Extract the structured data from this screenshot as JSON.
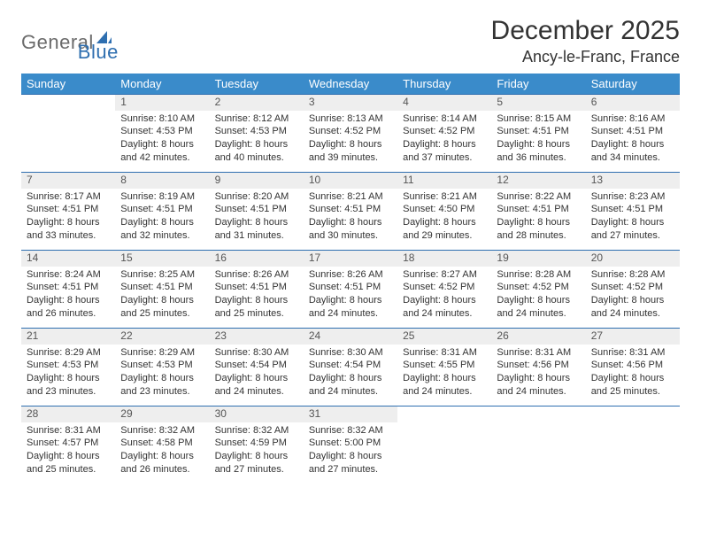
{
  "brand": {
    "general": "General",
    "blue": "Blue"
  },
  "title": "December 2025",
  "location": "Ancy-le-Franc, France",
  "colors": {
    "header_bg": "#3a8bca",
    "header_text": "#ffffff",
    "daynum_bg": "#eeeeee",
    "border": "#2f6fb0",
    "logo_gray": "#6b6b6b",
    "logo_blue": "#2f6fb0",
    "page_bg": "#ffffff",
    "text": "#333333"
  },
  "weekdays": [
    "Sunday",
    "Monday",
    "Tuesday",
    "Wednesday",
    "Thursday",
    "Friday",
    "Saturday"
  ],
  "weeks": [
    [
      null,
      {
        "n": "1",
        "sr": "Sunrise: 8:10 AM",
        "ss": "Sunset: 4:53 PM",
        "d1": "Daylight: 8 hours",
        "d2": "and 42 minutes."
      },
      {
        "n": "2",
        "sr": "Sunrise: 8:12 AM",
        "ss": "Sunset: 4:53 PM",
        "d1": "Daylight: 8 hours",
        "d2": "and 40 minutes."
      },
      {
        "n": "3",
        "sr": "Sunrise: 8:13 AM",
        "ss": "Sunset: 4:52 PM",
        "d1": "Daylight: 8 hours",
        "d2": "and 39 minutes."
      },
      {
        "n": "4",
        "sr": "Sunrise: 8:14 AM",
        "ss": "Sunset: 4:52 PM",
        "d1": "Daylight: 8 hours",
        "d2": "and 37 minutes."
      },
      {
        "n": "5",
        "sr": "Sunrise: 8:15 AM",
        "ss": "Sunset: 4:51 PM",
        "d1": "Daylight: 8 hours",
        "d2": "and 36 minutes."
      },
      {
        "n": "6",
        "sr": "Sunrise: 8:16 AM",
        "ss": "Sunset: 4:51 PM",
        "d1": "Daylight: 8 hours",
        "d2": "and 34 minutes."
      }
    ],
    [
      {
        "n": "7",
        "sr": "Sunrise: 8:17 AM",
        "ss": "Sunset: 4:51 PM",
        "d1": "Daylight: 8 hours",
        "d2": "and 33 minutes."
      },
      {
        "n": "8",
        "sr": "Sunrise: 8:19 AM",
        "ss": "Sunset: 4:51 PM",
        "d1": "Daylight: 8 hours",
        "d2": "and 32 minutes."
      },
      {
        "n": "9",
        "sr": "Sunrise: 8:20 AM",
        "ss": "Sunset: 4:51 PM",
        "d1": "Daylight: 8 hours",
        "d2": "and 31 minutes."
      },
      {
        "n": "10",
        "sr": "Sunrise: 8:21 AM",
        "ss": "Sunset: 4:51 PM",
        "d1": "Daylight: 8 hours",
        "d2": "and 30 minutes."
      },
      {
        "n": "11",
        "sr": "Sunrise: 8:21 AM",
        "ss": "Sunset: 4:50 PM",
        "d1": "Daylight: 8 hours",
        "d2": "and 29 minutes."
      },
      {
        "n": "12",
        "sr": "Sunrise: 8:22 AM",
        "ss": "Sunset: 4:51 PM",
        "d1": "Daylight: 8 hours",
        "d2": "and 28 minutes."
      },
      {
        "n": "13",
        "sr": "Sunrise: 8:23 AM",
        "ss": "Sunset: 4:51 PM",
        "d1": "Daylight: 8 hours",
        "d2": "and 27 minutes."
      }
    ],
    [
      {
        "n": "14",
        "sr": "Sunrise: 8:24 AM",
        "ss": "Sunset: 4:51 PM",
        "d1": "Daylight: 8 hours",
        "d2": "and 26 minutes."
      },
      {
        "n": "15",
        "sr": "Sunrise: 8:25 AM",
        "ss": "Sunset: 4:51 PM",
        "d1": "Daylight: 8 hours",
        "d2": "and 25 minutes."
      },
      {
        "n": "16",
        "sr": "Sunrise: 8:26 AM",
        "ss": "Sunset: 4:51 PM",
        "d1": "Daylight: 8 hours",
        "d2": "and 25 minutes."
      },
      {
        "n": "17",
        "sr": "Sunrise: 8:26 AM",
        "ss": "Sunset: 4:51 PM",
        "d1": "Daylight: 8 hours",
        "d2": "and 24 minutes."
      },
      {
        "n": "18",
        "sr": "Sunrise: 8:27 AM",
        "ss": "Sunset: 4:52 PM",
        "d1": "Daylight: 8 hours",
        "d2": "and 24 minutes."
      },
      {
        "n": "19",
        "sr": "Sunrise: 8:28 AM",
        "ss": "Sunset: 4:52 PM",
        "d1": "Daylight: 8 hours",
        "d2": "and 24 minutes."
      },
      {
        "n": "20",
        "sr": "Sunrise: 8:28 AM",
        "ss": "Sunset: 4:52 PM",
        "d1": "Daylight: 8 hours",
        "d2": "and 24 minutes."
      }
    ],
    [
      {
        "n": "21",
        "sr": "Sunrise: 8:29 AM",
        "ss": "Sunset: 4:53 PM",
        "d1": "Daylight: 8 hours",
        "d2": "and 23 minutes."
      },
      {
        "n": "22",
        "sr": "Sunrise: 8:29 AM",
        "ss": "Sunset: 4:53 PM",
        "d1": "Daylight: 8 hours",
        "d2": "and 23 minutes."
      },
      {
        "n": "23",
        "sr": "Sunrise: 8:30 AM",
        "ss": "Sunset: 4:54 PM",
        "d1": "Daylight: 8 hours",
        "d2": "and 24 minutes."
      },
      {
        "n": "24",
        "sr": "Sunrise: 8:30 AM",
        "ss": "Sunset: 4:54 PM",
        "d1": "Daylight: 8 hours",
        "d2": "and 24 minutes."
      },
      {
        "n": "25",
        "sr": "Sunrise: 8:31 AM",
        "ss": "Sunset: 4:55 PM",
        "d1": "Daylight: 8 hours",
        "d2": "and 24 minutes."
      },
      {
        "n": "26",
        "sr": "Sunrise: 8:31 AM",
        "ss": "Sunset: 4:56 PM",
        "d1": "Daylight: 8 hours",
        "d2": "and 24 minutes."
      },
      {
        "n": "27",
        "sr": "Sunrise: 8:31 AM",
        "ss": "Sunset: 4:56 PM",
        "d1": "Daylight: 8 hours",
        "d2": "and 25 minutes."
      }
    ],
    [
      {
        "n": "28",
        "sr": "Sunrise: 8:31 AM",
        "ss": "Sunset: 4:57 PM",
        "d1": "Daylight: 8 hours",
        "d2": "and 25 minutes."
      },
      {
        "n": "29",
        "sr": "Sunrise: 8:32 AM",
        "ss": "Sunset: 4:58 PM",
        "d1": "Daylight: 8 hours",
        "d2": "and 26 minutes."
      },
      {
        "n": "30",
        "sr": "Sunrise: 8:32 AM",
        "ss": "Sunset: 4:59 PM",
        "d1": "Daylight: 8 hours",
        "d2": "and 27 minutes."
      },
      {
        "n": "31",
        "sr": "Sunrise: 8:32 AM",
        "ss": "Sunset: 5:00 PM",
        "d1": "Daylight: 8 hours",
        "d2": "and 27 minutes."
      },
      null,
      null,
      null
    ]
  ]
}
